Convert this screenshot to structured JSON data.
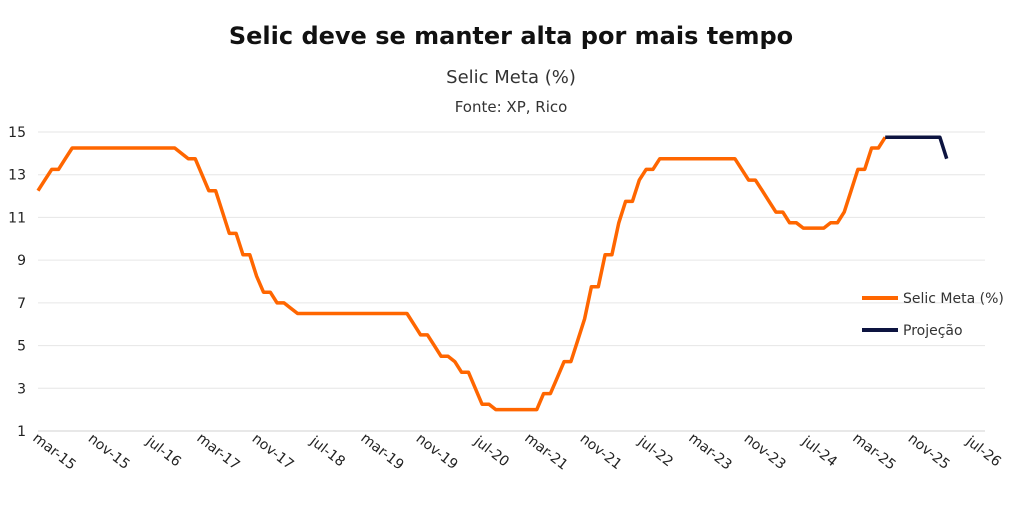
{
  "chart_data": {
    "type": "line",
    "title": "Selic deve se manter alta por mais tempo",
    "subtitle": "Selic Meta (%)",
    "source": "Fonte: XP, Rico",
    "xlabel": "",
    "ylabel": "",
    "ylim": [
      1,
      15
    ],
    "y_ticks": [
      "15",
      "13",
      "11",
      "9",
      "7",
      "5",
      "3",
      "1"
    ],
    "x_tick_labels": [
      "mar-15",
      "nov-15",
      "jul-16",
      "mar-17",
      "nov-17",
      "jul-18",
      "mar-19",
      "nov-19",
      "jul-20",
      "mar-21",
      "nov-21",
      "jul-22",
      "mar-23",
      "nov-23",
      "jul-24",
      "mar-25",
      "nov-25",
      "jul-26"
    ],
    "grid": true,
    "legend_position": "right",
    "colors": {
      "selic": "#ff6600",
      "projecao": "#0d1440",
      "grid": "#e6e6e6"
    },
    "series": [
      {
        "name": "Selic Meta (%)",
        "x": [
          "2015-01",
          "2015-02",
          "2015-03",
          "2015-04",
          "2015-05",
          "2015-06",
          "2015-07",
          "2015-08",
          "2016-01",
          "2016-06",
          "2016-07",
          "2016-08",
          "2016-09",
          "2016-10",
          "2016-11",
          "2016-12",
          "2017-01",
          "2017-02",
          "2017-03",
          "2017-04",
          "2017-05",
          "2017-06",
          "2017-07",
          "2017-08",
          "2017-09",
          "2017-10",
          "2017-11",
          "2017-12",
          "2018-01",
          "2018-02",
          "2018-03",
          "2018-04",
          "2019-06",
          "2019-07",
          "2019-08",
          "2019-09",
          "2019-10",
          "2019-11",
          "2019-12",
          "2020-01",
          "2020-02",
          "2020-03",
          "2020-04",
          "2020-05",
          "2020-06",
          "2020-07",
          "2020-08",
          "2021-02",
          "2021-03",
          "2021-04",
          "2021-05",
          "2021-06",
          "2021-07",
          "2021-08",
          "2021-09",
          "2021-10",
          "2021-11",
          "2021-12",
          "2022-01",
          "2022-02",
          "2022-03",
          "2022-04",
          "2022-05",
          "2022-06",
          "2022-07",
          "2022-08",
          "2023-07",
          "2023-08",
          "2023-09",
          "2023-10",
          "2023-11",
          "2023-12",
          "2024-01",
          "2024-02",
          "2024-03",
          "2024-04",
          "2024-05",
          "2024-06",
          "2024-07",
          "2024-08",
          "2024-09",
          "2024-10",
          "2024-11",
          "2024-12",
          "2025-01",
          "2025-02",
          "2025-03",
          "2025-04",
          "2025-05"
        ],
        "values": [
          12.25,
          12.75,
          13.25,
          13.25,
          13.75,
          14.25,
          14.25,
          14.25,
          14.25,
          14.25,
          14.25,
          14.25,
          14.25,
          14.0,
          13.75,
          13.75,
          13.0,
          12.25,
          12.25,
          11.25,
          10.25,
          10.25,
          9.25,
          9.25,
          8.25,
          7.5,
          7.5,
          7.0,
          7.0,
          6.75,
          6.5,
          6.5,
          6.5,
          6.5,
          6.0,
          5.5,
          5.5,
          5.0,
          4.5,
          4.5,
          4.25,
          3.75,
          3.75,
          3.0,
          2.25,
          2.25,
          2.0,
          2.0,
          2.75,
          2.75,
          3.5,
          4.25,
          4.25,
          5.25,
          6.25,
          7.75,
          7.75,
          9.25,
          9.25,
          10.75,
          11.75,
          11.75,
          12.75,
          13.25,
          13.25,
          13.75,
          13.75,
          13.25,
          12.75,
          12.75,
          12.25,
          11.75,
          11.25,
          11.25,
          10.75,
          10.75,
          10.5,
          10.5,
          10.5,
          10.5,
          10.75,
          10.75,
          11.25,
          12.25,
          13.25,
          13.25,
          14.25,
          14.25,
          14.75
        ]
      },
      {
        "name": "Projeção",
        "x": [
          "2025-05",
          "2025-06",
          "2025-12",
          "2026-01",
          "2026-02"
        ],
        "values": [
          14.75,
          14.75,
          14.75,
          14.75,
          13.75
        ]
      }
    ]
  }
}
